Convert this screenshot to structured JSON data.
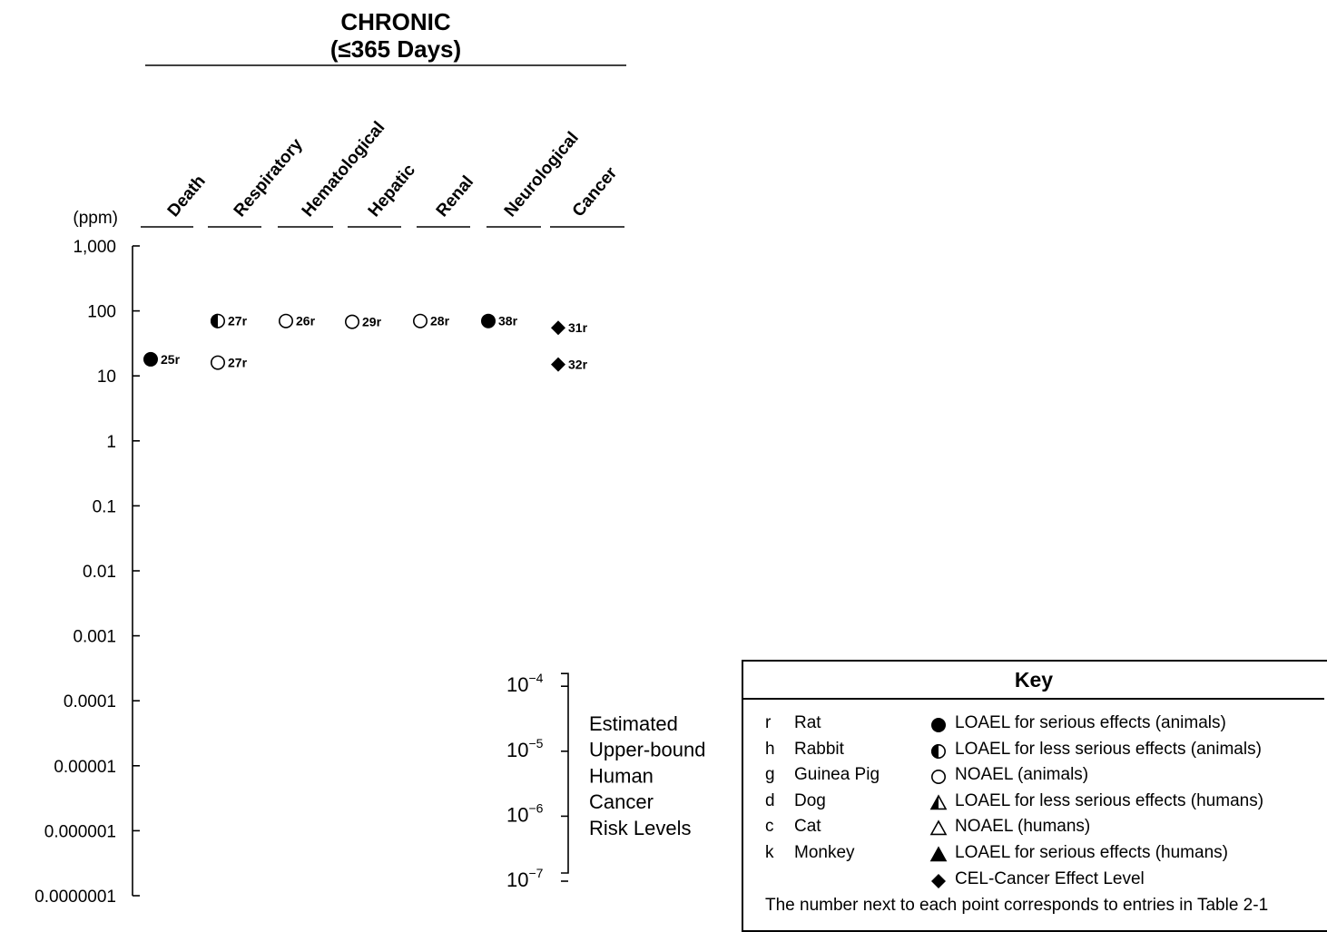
{
  "chart_data": {
    "type": "scatter",
    "title": "CHRONIC",
    "subtitle": "(≤365 Days)",
    "ylabel": "(ppm)",
    "yscale": "log",
    "ylim": [
      1e-07,
      1000
    ],
    "yticks": [
      "1,000",
      "100",
      "10",
      "1",
      "0.1",
      "0.01",
      "0.001",
      "0.0001",
      "0.00001",
      "0.000001",
      "0.0000001"
    ],
    "categories": [
      "Death",
      "Respiratory",
      "Hematological",
      "Hepatic",
      "Renal",
      "Neurological",
      "Cancer"
    ],
    "points": [
      {
        "category": "Death",
        "y": 18,
        "symbol": "filled-circle",
        "label": "25r"
      },
      {
        "category": "Respiratory",
        "y": 70,
        "symbol": "half-circle",
        "label": "27r"
      },
      {
        "category": "Respiratory",
        "y": 16,
        "symbol": "open-circle",
        "label": "27r"
      },
      {
        "category": "Hematological",
        "y": 70,
        "symbol": "open-circle",
        "label": "26r"
      },
      {
        "category": "Hepatic",
        "y": 68,
        "symbol": "open-circle",
        "label": "29r"
      },
      {
        "category": "Renal",
        "y": 70,
        "symbol": "open-circle",
        "label": "28r"
      },
      {
        "category": "Neurological",
        "y": 70,
        "symbol": "filled-circle",
        "label": "38r"
      },
      {
        "category": "Cancer",
        "y": 55,
        "symbol": "diamond",
        "label": "31r"
      },
      {
        "category": "Cancer",
        "y": 15,
        "symbol": "diamond",
        "label": "32r"
      }
    ],
    "risk_levels": {
      "labels": [
        {
          "base": "10",
          "exp": "−4",
          "value": 0.0001
        },
        {
          "base": "10",
          "exp": "−5",
          "value": 1e-05
        },
        {
          "base": "10",
          "exp": "−6",
          "value": 1e-06
        },
        {
          "base": "10",
          "exp": "−7",
          "value": 1e-07
        }
      ],
      "caption": [
        "Estimated",
        "Upper-bound",
        "Human",
        "Cancer",
        "Risk Levels"
      ]
    }
  },
  "key": {
    "title": "Key",
    "species": [
      {
        "abbr": "r",
        "name": "Rat"
      },
      {
        "abbr": "h",
        "name": "Rabbit"
      },
      {
        "abbr": "g",
        "name": "Guinea Pig"
      },
      {
        "abbr": "d",
        "name": "Dog"
      },
      {
        "abbr": "c",
        "name": "Cat"
      },
      {
        "abbr": "k",
        "name": "Monkey"
      }
    ],
    "symbols": [
      {
        "icon": "filled-circle",
        "text": "LOAEL for serious effects (animals)"
      },
      {
        "icon": "half-circle",
        "text": "LOAEL for less serious effects (animals)"
      },
      {
        "icon": "open-circle",
        "text": "NOAEL (animals)"
      },
      {
        "icon": "half-triangle",
        "text": "LOAEL for less serious effects (humans)"
      },
      {
        "icon": "open-triangle",
        "text": "NOAEL (humans)"
      },
      {
        "icon": "filled-triangle",
        "text": "LOAEL for serious effects (humans)"
      },
      {
        "icon": "diamond",
        "text": "CEL-Cancer Effect Level"
      }
    ],
    "note": "The number next to each point corresponds to entries in Table 2-1"
  }
}
